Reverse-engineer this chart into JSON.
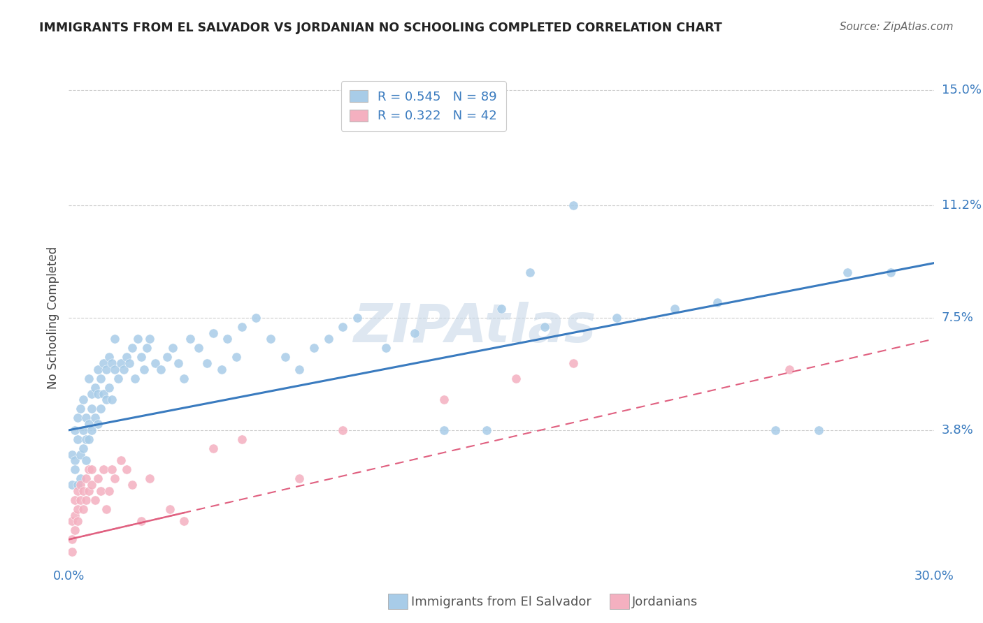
{
  "title": "IMMIGRANTS FROM EL SALVADOR VS JORDANIAN NO SCHOOLING COMPLETED CORRELATION CHART",
  "source": "Source: ZipAtlas.com",
  "ylabel_label": "No Schooling Completed",
  "x_min": 0.0,
  "x_max": 0.3,
  "y_min": -0.005,
  "y_max": 0.155,
  "x_ticks": [
    0.0,
    0.05,
    0.1,
    0.15,
    0.2,
    0.25,
    0.3
  ],
  "x_tick_labels": [
    "0.0%",
    "",
    "",
    "",
    "",
    "",
    "30.0%"
  ],
  "y_tick_values": [
    0.038,
    0.075,
    0.112,
    0.15
  ],
  "y_tick_labels": [
    "3.8%",
    "7.5%",
    "11.2%",
    "15.0%"
  ],
  "legend_blue_R": "0.545",
  "legend_blue_N": "89",
  "legend_pink_R": "0.322",
  "legend_pink_N": "42",
  "blue_color": "#a8cce8",
  "pink_color": "#f4b0c0",
  "blue_line_color": "#3a7bbf",
  "pink_line_color": "#e06080",
  "watermark": "ZIPAtlas",
  "blue_line_x0": 0.0,
  "blue_line_y0": 0.038,
  "blue_line_x1": 0.3,
  "blue_line_y1": 0.093,
  "pink_line_x0": 0.0,
  "pink_line_x1": 0.3,
  "pink_line_y0": 0.002,
  "pink_line_y1": 0.068,
  "blue_scatter_x": [
    0.001,
    0.001,
    0.002,
    0.002,
    0.002,
    0.003,
    0.003,
    0.003,
    0.004,
    0.004,
    0.004,
    0.005,
    0.005,
    0.005,
    0.006,
    0.006,
    0.006,
    0.007,
    0.007,
    0.007,
    0.008,
    0.008,
    0.008,
    0.009,
    0.009,
    0.01,
    0.01,
    0.01,
    0.011,
    0.011,
    0.012,
    0.012,
    0.013,
    0.013,
    0.014,
    0.014,
    0.015,
    0.015,
    0.016,
    0.016,
    0.017,
    0.018,
    0.019,
    0.02,
    0.021,
    0.022,
    0.023,
    0.024,
    0.025,
    0.026,
    0.027,
    0.028,
    0.03,
    0.032,
    0.034,
    0.036,
    0.038,
    0.04,
    0.042,
    0.045,
    0.048,
    0.05,
    0.053,
    0.055,
    0.058,
    0.06,
    0.065,
    0.07,
    0.075,
    0.08,
    0.085,
    0.09,
    0.095,
    0.1,
    0.11,
    0.12,
    0.13,
    0.145,
    0.16,
    0.175,
    0.19,
    0.21,
    0.225,
    0.245,
    0.26,
    0.27,
    0.285,
    0.15,
    0.165
  ],
  "blue_scatter_y": [
    0.03,
    0.02,
    0.028,
    0.038,
    0.025,
    0.035,
    0.042,
    0.02,
    0.03,
    0.045,
    0.022,
    0.038,
    0.032,
    0.048,
    0.035,
    0.042,
    0.028,
    0.04,
    0.055,
    0.035,
    0.045,
    0.05,
    0.038,
    0.052,
    0.042,
    0.05,
    0.058,
    0.04,
    0.055,
    0.045,
    0.06,
    0.05,
    0.058,
    0.048,
    0.062,
    0.052,
    0.06,
    0.048,
    0.058,
    0.068,
    0.055,
    0.06,
    0.058,
    0.062,
    0.06,
    0.065,
    0.055,
    0.068,
    0.062,
    0.058,
    0.065,
    0.068,
    0.06,
    0.058,
    0.062,
    0.065,
    0.06,
    0.055,
    0.068,
    0.065,
    0.06,
    0.07,
    0.058,
    0.068,
    0.062,
    0.072,
    0.075,
    0.068,
    0.062,
    0.058,
    0.065,
    0.068,
    0.072,
    0.075,
    0.065,
    0.07,
    0.038,
    0.038,
    0.09,
    0.112,
    0.075,
    0.078,
    0.08,
    0.038,
    0.038,
    0.09,
    0.09,
    0.078,
    0.072
  ],
  "pink_scatter_x": [
    0.001,
    0.001,
    0.001,
    0.002,
    0.002,
    0.002,
    0.003,
    0.003,
    0.003,
    0.004,
    0.004,
    0.005,
    0.005,
    0.006,
    0.006,
    0.007,
    0.007,
    0.008,
    0.008,
    0.009,
    0.01,
    0.011,
    0.012,
    0.013,
    0.014,
    0.015,
    0.016,
    0.018,
    0.02,
    0.022,
    0.025,
    0.028,
    0.035,
    0.04,
    0.05,
    0.06,
    0.08,
    0.095,
    0.13,
    0.155,
    0.175,
    0.25
  ],
  "pink_scatter_y": [
    -0.002,
    0.002,
    0.008,
    0.005,
    0.01,
    0.015,
    0.008,
    0.012,
    0.018,
    0.015,
    0.02,
    0.012,
    0.018,
    0.015,
    0.022,
    0.018,
    0.025,
    0.02,
    0.025,
    0.015,
    0.022,
    0.018,
    0.025,
    0.012,
    0.018,
    0.025,
    0.022,
    0.028,
    0.025,
    0.02,
    0.008,
    0.022,
    0.012,
    0.008,
    0.032,
    0.035,
    0.022,
    0.038,
    0.048,
    0.055,
    0.06,
    0.058
  ]
}
